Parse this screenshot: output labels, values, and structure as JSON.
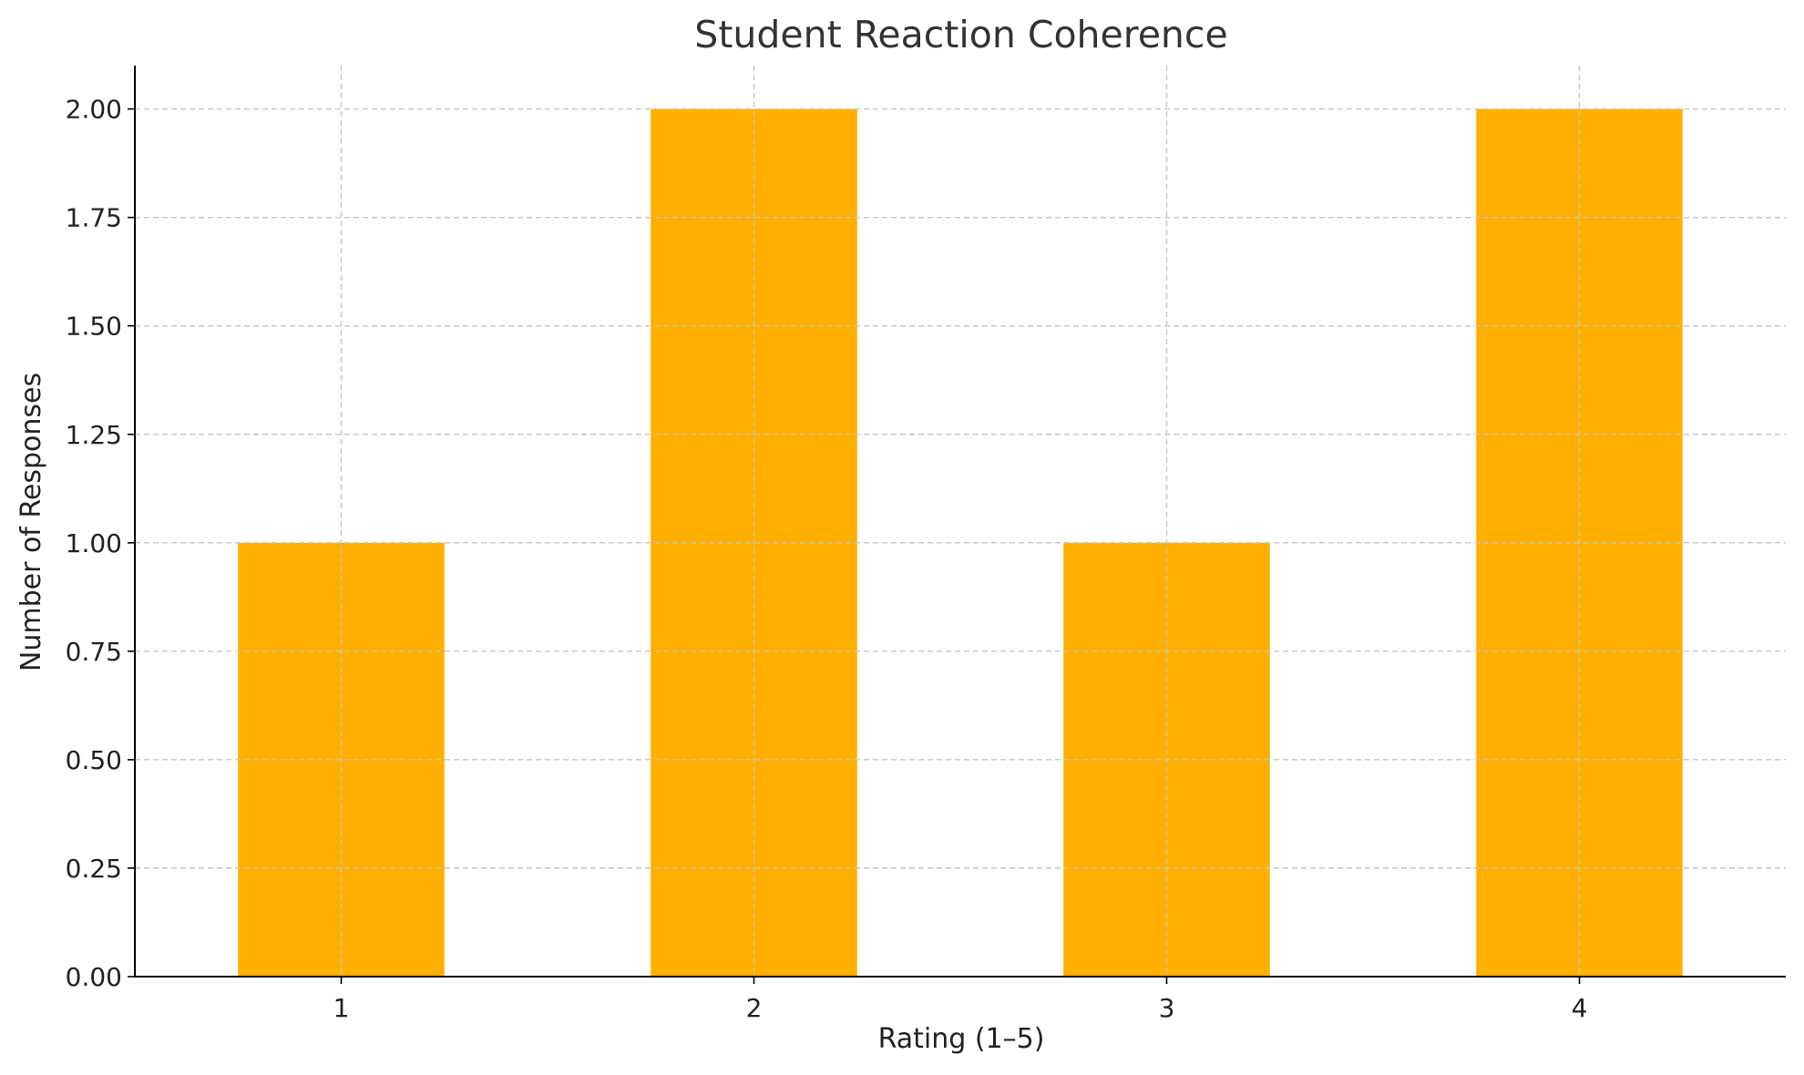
{
  "chart_data": {
    "type": "bar",
    "title": "Student Reaction Coherence",
    "xlabel": "Rating (1–5)",
    "ylabel": "Number of Responses",
    "categories": [
      "1",
      "2",
      "3",
      "4"
    ],
    "values": [
      1,
      2,
      1,
      2
    ],
    "ylim": [
      0,
      2.1
    ],
    "yticks": [
      "0.00",
      "0.25",
      "0.50",
      "0.75",
      "1.00",
      "1.25",
      "1.50",
      "1.75",
      "2.00"
    ],
    "grid": true,
    "bar_color": "#FFB000"
  }
}
